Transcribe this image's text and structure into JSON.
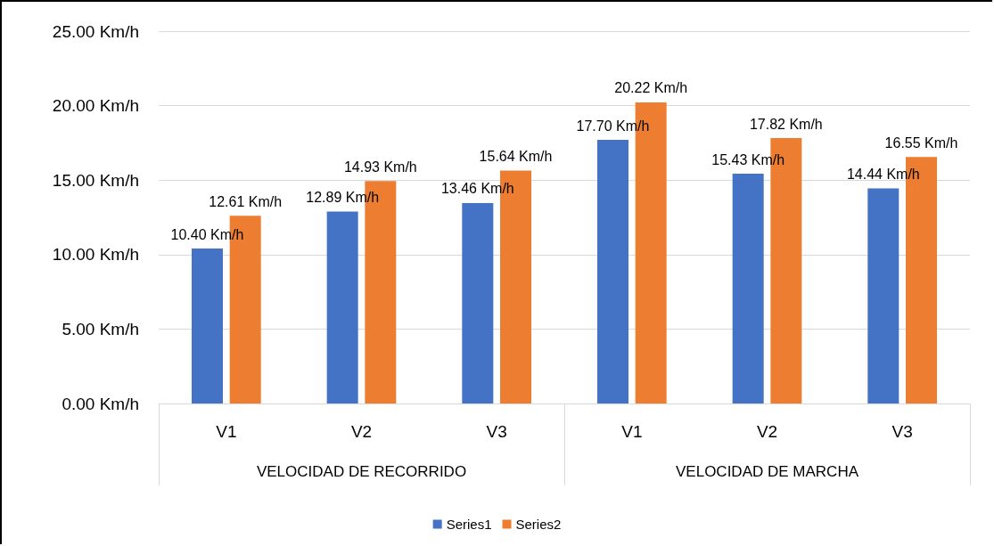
{
  "chart_data": {
    "type": "bar",
    "categories": [
      "V1",
      "V2",
      "V3",
      "V1",
      "V2",
      "V3"
    ],
    "series": [
      {
        "name": "Series1",
        "color": "#4472c4",
        "values": [
          10.4,
          12.89,
          13.46,
          17.7,
          15.43,
          14.44
        ],
        "value_labels": [
          "10.40 Km/h",
          "12.89 Km/h",
          "13.46 Km/h",
          "17.70 Km/h",
          "15.43 Km/h",
          "14.44 Km/h"
        ]
      },
      {
        "name": "Series2",
        "color": "#ed7d31",
        "values": [
          12.61,
          14.93,
          15.64,
          20.22,
          17.82,
          16.55
        ],
        "value_labels": [
          "12.61 Km/h",
          "14.93 Km/h",
          "15.64 Km/h",
          "20.22 Km/h",
          "17.82 Km/h",
          "16.55 Km/h"
        ]
      }
    ],
    "annotations": [
      "VELOCIDAD DE RECORRIDO",
      "VELOCIDAD DE MARCHA"
    ],
    "ylim": [
      0,
      25
    ],
    "yticks": [
      {
        "value": 0,
        "label": "0.00 Km/h"
      },
      {
        "value": 5,
        "label": "5.00 Km/h"
      },
      {
        "value": 10,
        "label": "10.00 Km/h"
      },
      {
        "value": 15,
        "label": "15.00 Km/h"
      },
      {
        "value": 20,
        "label": "20.00 Km/h"
      },
      {
        "value": 25,
        "label": "25.00 Km/h"
      }
    ],
    "grid": "y",
    "legend": "bottom"
  }
}
